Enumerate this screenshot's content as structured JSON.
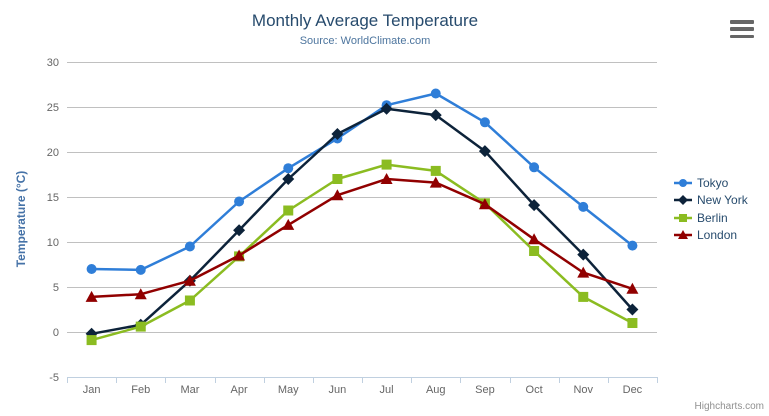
{
  "colors": {
    "background": "#ffffff",
    "title": "#274b6d",
    "subtitle": "#4d759e",
    "gridline": "#c0c0c0",
    "axis_line": "#c0d0e0",
    "axis_label": "#666666",
    "y_axis_title": "#4572a7",
    "legend_text": "#274b6d",
    "credit": "#909090",
    "burger_icon": "#666666"
  },
  "credit_label": "Highcharts.com",
  "chart_data": {
    "type": "line",
    "title": "Monthly Average Temperature",
    "subtitle": "Source: WorldClimate.com",
    "xlabel": "",
    "ylabel": "Temperature (°C)",
    "ylim": [
      -5,
      30
    ],
    "ytick_interval": 5,
    "grid": true,
    "legend_position": "right",
    "categories": [
      "Jan",
      "Feb",
      "Mar",
      "Apr",
      "May",
      "Jun",
      "Jul",
      "Aug",
      "Sep",
      "Oct",
      "Nov",
      "Dec"
    ],
    "series": [
      {
        "name": "Tokyo",
        "marker": "circle",
        "color": "#2f7ed8",
        "values": [
          7.0,
          6.9,
          9.5,
          14.5,
          18.2,
          21.5,
          25.2,
          26.5,
          23.3,
          18.3,
          13.9,
          9.6
        ]
      },
      {
        "name": "New York",
        "marker": "diamond",
        "color": "#0d233a",
        "values": [
          -0.2,
          0.8,
          5.7,
          11.3,
          17.0,
          22.0,
          24.8,
          24.1,
          20.1,
          14.1,
          8.6,
          2.5
        ]
      },
      {
        "name": "Berlin",
        "marker": "square",
        "color": "#8bbc21",
        "values": [
          -0.9,
          0.6,
          3.5,
          8.4,
          13.5,
          17.0,
          18.6,
          17.9,
          14.3,
          9.0,
          3.9,
          1.0
        ]
      },
      {
        "name": "London",
        "marker": "triangle",
        "color": "#910000",
        "values": [
          3.9,
          4.2,
          5.7,
          8.5,
          11.9,
          15.2,
          17.0,
          16.6,
          14.2,
          10.3,
          6.6,
          4.8
        ]
      }
    ]
  }
}
